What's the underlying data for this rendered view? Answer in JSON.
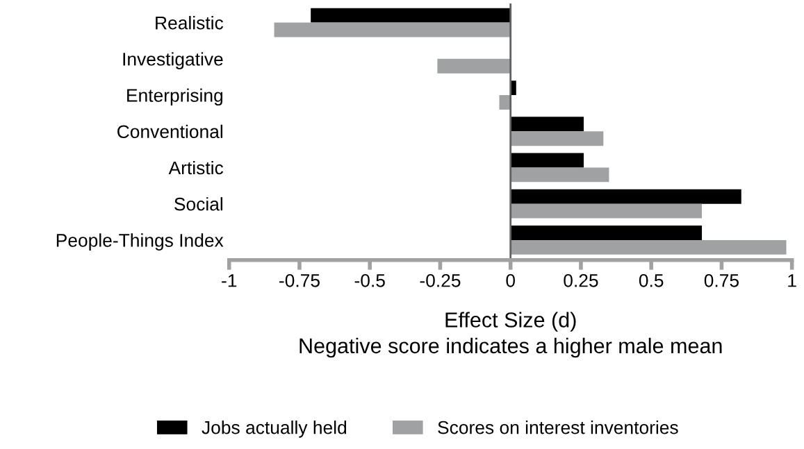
{
  "chart_data": {
    "type": "bar",
    "orientation": "horizontal",
    "categories": [
      "Realistic",
      "Investigative",
      "Enterprising",
      "Conventional",
      "Artistic",
      "Social",
      "People-Things Index"
    ],
    "series": [
      {
        "name": "Jobs actually held",
        "color": "#000000",
        "values": [
          -0.71,
          0,
          0.02,
          0.26,
          0.26,
          0.82,
          0.68
        ]
      },
      {
        "name": "Scores on interest inventories",
        "color": "#a0a1a3",
        "values": [
          -0.84,
          -0.26,
          -0.04,
          0.33,
          0.35,
          0.68,
          0.98
        ]
      }
    ],
    "xlabel": "Effect Size (d)\nNegative score indicates a higher male mean",
    "xlim": [
      -1,
      1
    ],
    "xticks": [
      {
        "value": -1,
        "label": "-1"
      },
      -0.75,
      -0.5,
      -0.25,
      0,
      0.25,
      0.5,
      0.75,
      1
    ],
    "legend": "bottom"
  }
}
